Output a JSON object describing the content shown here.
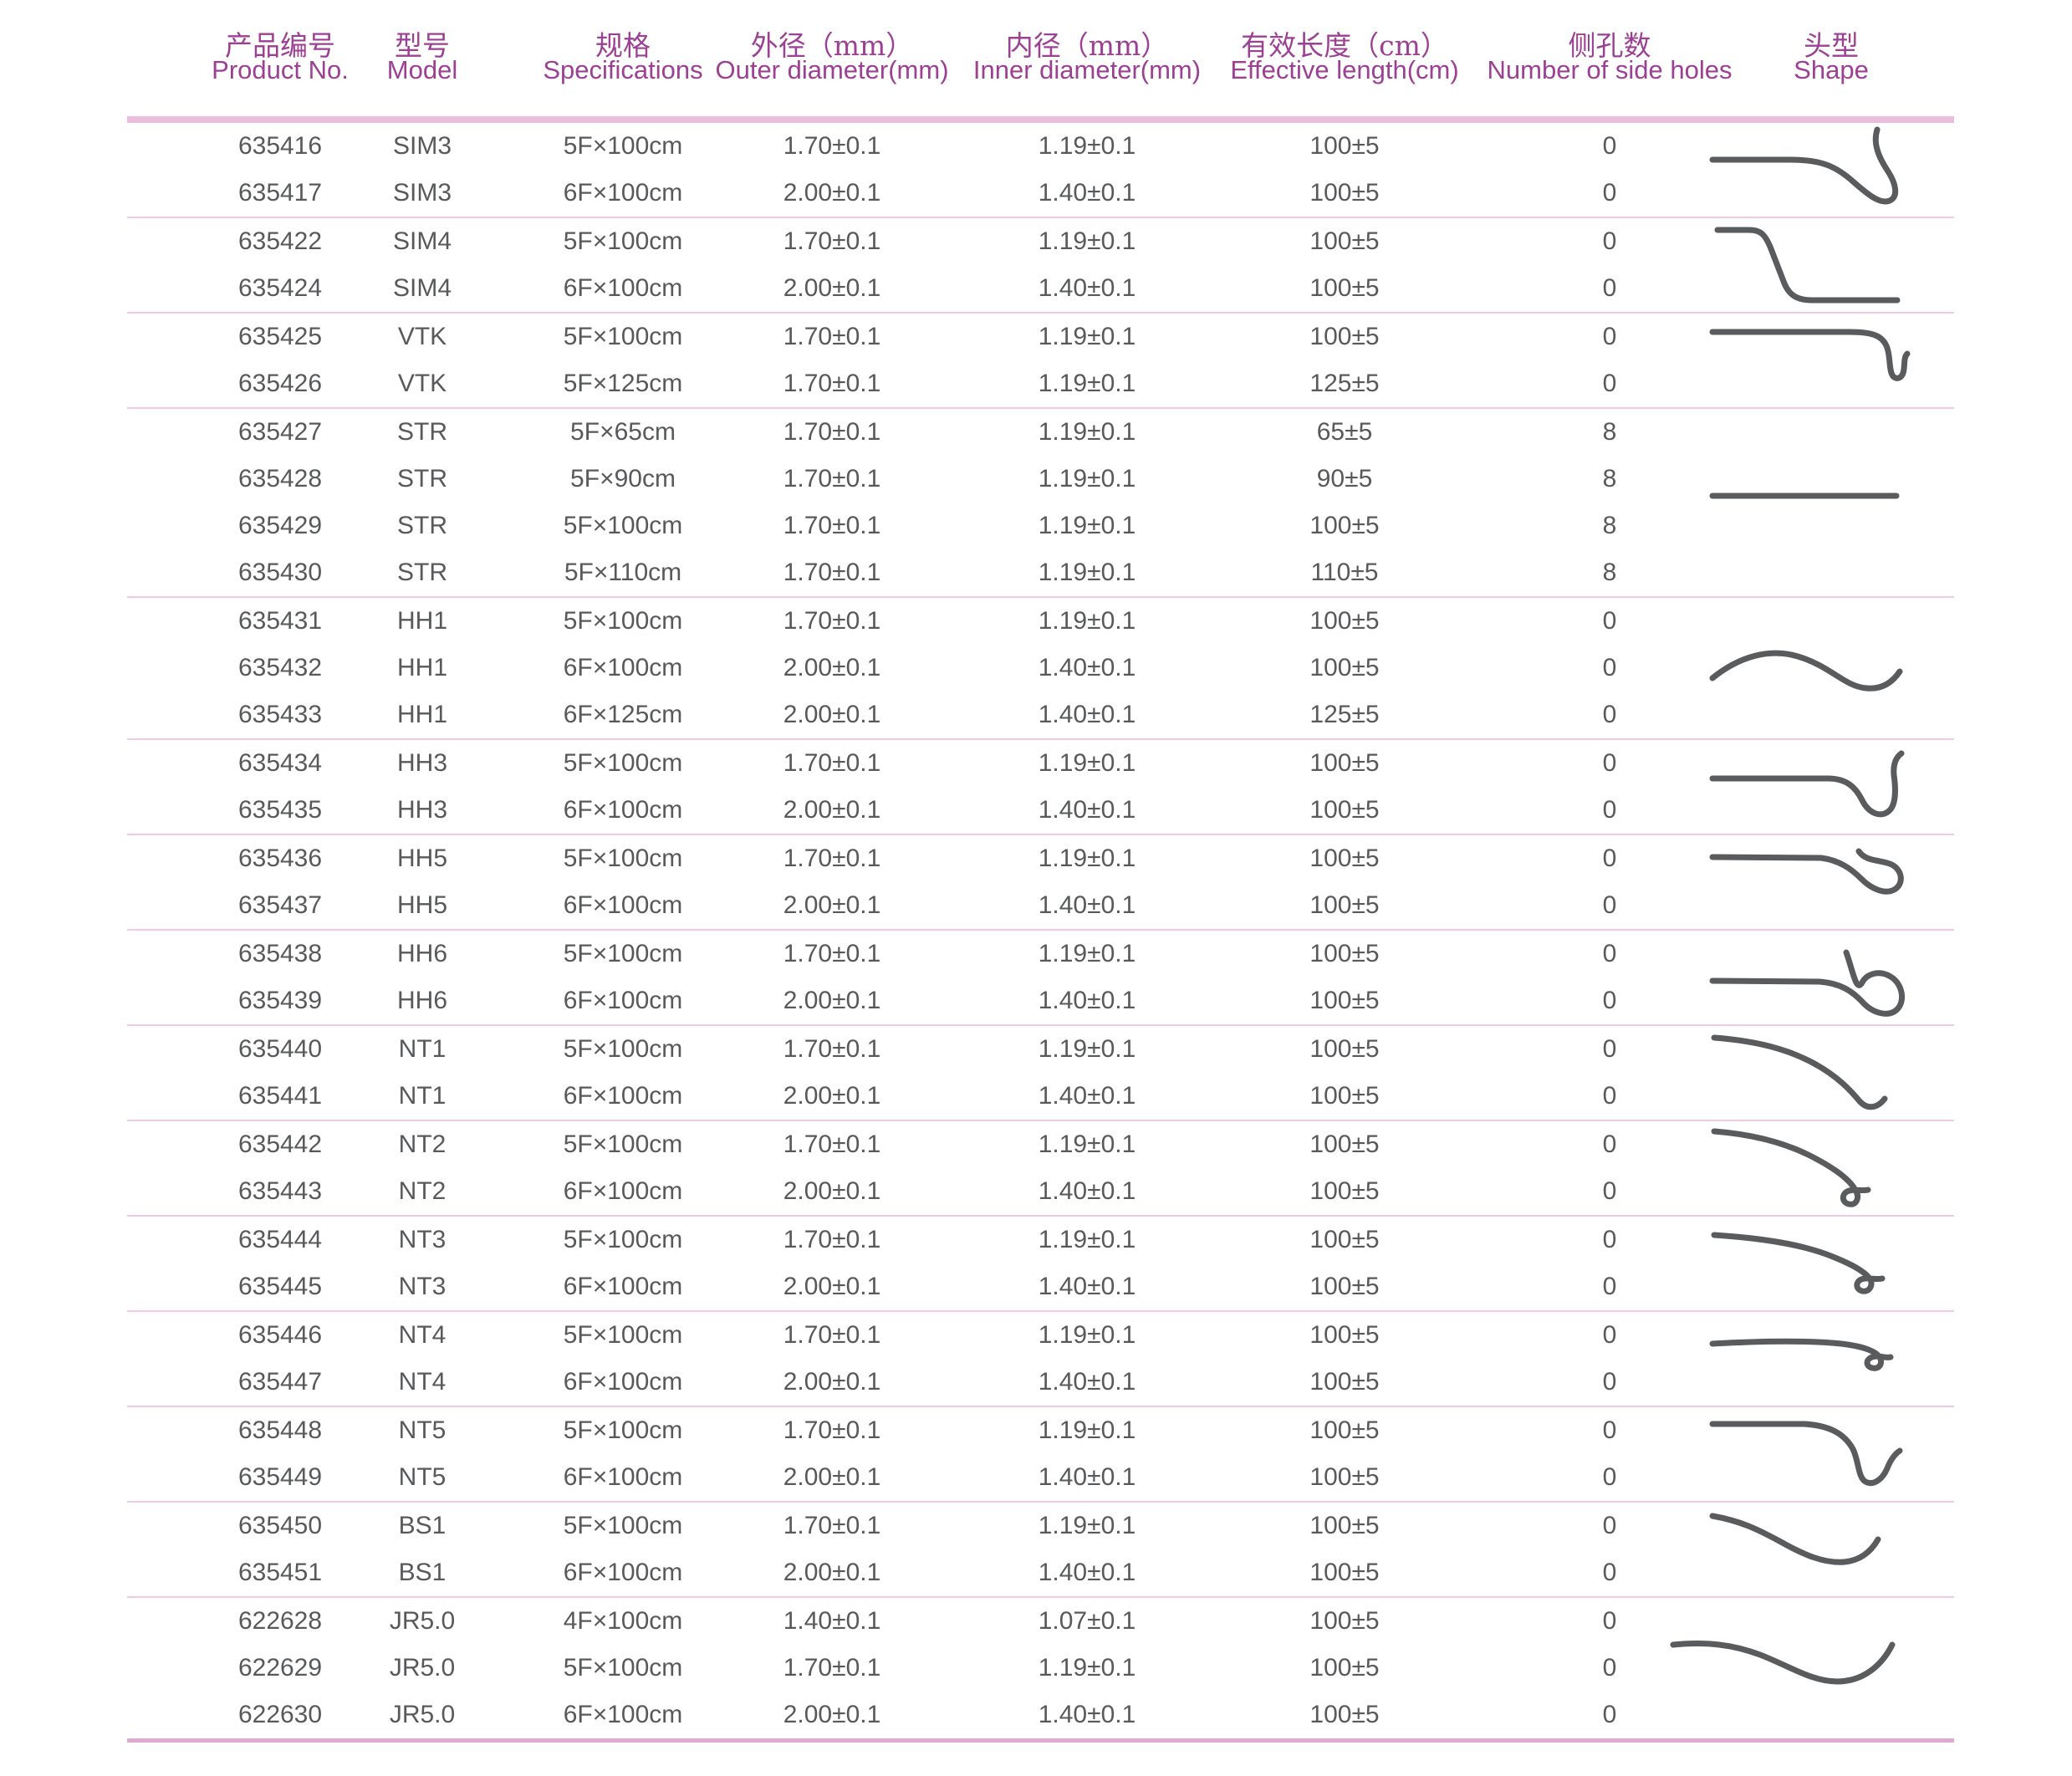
{
  "colors": {
    "header_text": "#9c4094",
    "body_text": "#58595b",
    "header_bar": "#ecbcdd",
    "separator": "#f2cae5",
    "bottom_line": "#dfa9d2",
    "shape_stroke": "#5a5b5d"
  },
  "table": {
    "columns": [
      {
        "zh": "产品编号",
        "en": "Product No."
      },
      {
        "zh": "型号",
        "en": "Model"
      },
      {
        "zh": "规格",
        "en": "Specifications"
      },
      {
        "zh": "外径（mm）",
        "en": "Outer diameter(mm)"
      },
      {
        "zh": "内径（mm）",
        "en": "Inner diameter(mm)"
      },
      {
        "zh": "有效长度（cm）",
        "en": "Effective length(cm)"
      },
      {
        "zh": "侧孔数",
        "en": "Number of side holes"
      },
      {
        "zh": "头型",
        "en": "Shape"
      }
    ],
    "groups": [
      {
        "model": "SIM3",
        "shape_id": "sim3",
        "shape_icon": "sim3-tip-curve-icon",
        "rows": [
          [
            "635416",
            "SIM3",
            "5F×100cm",
            "1.70±0.1",
            "1.19±0.1",
            "100±5",
            "0"
          ],
          [
            "635417",
            "SIM3",
            "6F×100cm",
            "2.00±0.1",
            "1.40±0.1",
            "100±5",
            "0"
          ]
        ]
      },
      {
        "model": "SIM4",
        "shape_id": "sim4",
        "shape_icon": "sim4-tip-curve-icon",
        "rows": [
          [
            "635422",
            "SIM4",
            "5F×100cm",
            "1.70±0.1",
            "1.19±0.1",
            "100±5",
            "0"
          ],
          [
            "635424",
            "SIM4",
            "6F×100cm",
            "2.00±0.1",
            "1.40±0.1",
            "100±5",
            "0"
          ]
        ]
      },
      {
        "model": "VTK",
        "shape_id": "vtk",
        "shape_icon": "vtk-tip-curve-icon",
        "rows": [
          [
            "635425",
            "VTK",
            "5F×100cm",
            "1.70±0.1",
            "1.19±0.1",
            "100±5",
            "0"
          ],
          [
            "635426",
            "VTK",
            "5F×125cm",
            "1.70±0.1",
            "1.19±0.1",
            "125±5",
            "0"
          ]
        ]
      },
      {
        "model": "STR",
        "shape_id": "str",
        "shape_icon": "str-straight-tip-icon",
        "rows": [
          [
            "635427",
            "STR",
            "5F×65cm",
            "1.70±0.1",
            "1.19±0.1",
            "65±5",
            "8"
          ],
          [
            "635428",
            "STR",
            "5F×90cm",
            "1.70±0.1",
            "1.19±0.1",
            "90±5",
            "8"
          ],
          [
            "635429",
            "STR",
            "5F×100cm",
            "1.70±0.1",
            "1.19±0.1",
            "100±5",
            "8"
          ],
          [
            "635430",
            "STR",
            "5F×110cm",
            "1.70±0.1",
            "1.19±0.1",
            "110±5",
            "8"
          ]
        ]
      },
      {
        "model": "HH1",
        "shape_id": "hh1",
        "shape_icon": "hh1-tip-curve-icon",
        "rows": [
          [
            "635431",
            "HH1",
            "5F×100cm",
            "1.70±0.1",
            "1.19±0.1",
            "100±5",
            "0"
          ],
          [
            "635432",
            "HH1",
            "6F×100cm",
            "2.00±0.1",
            "1.40±0.1",
            "100±5",
            "0"
          ],
          [
            "635433",
            "HH1",
            "6F×125cm",
            "2.00±0.1",
            "1.40±0.1",
            "125±5",
            "0"
          ]
        ]
      },
      {
        "model": "HH3",
        "shape_id": "hh3",
        "shape_icon": "hh3-tip-curve-icon",
        "rows": [
          [
            "635434",
            "HH3",
            "5F×100cm",
            "1.70±0.1",
            "1.19±0.1",
            "100±5",
            "0"
          ],
          [
            "635435",
            "HH3",
            "6F×100cm",
            "2.00±0.1",
            "1.40±0.1",
            "100±5",
            "0"
          ]
        ]
      },
      {
        "model": "HH5",
        "shape_id": "hh5",
        "shape_icon": "hh5-tip-loop-icon",
        "rows": [
          [
            "635436",
            "HH5",
            "5F×100cm",
            "1.70±0.1",
            "1.19±0.1",
            "100±5",
            "0"
          ],
          [
            "635437",
            "HH5",
            "6F×100cm",
            "2.00±0.1",
            "1.40±0.1",
            "100±5",
            "0"
          ]
        ]
      },
      {
        "model": "HH6",
        "shape_id": "hh6",
        "shape_icon": "hh6-tip-loop-icon",
        "rows": [
          [
            "635438",
            "HH6",
            "5F×100cm",
            "1.70±0.1",
            "1.19±0.1",
            "100±5",
            "0"
          ],
          [
            "635439",
            "HH6",
            "6F×100cm",
            "2.00±0.1",
            "1.40±0.1",
            "100±5",
            "0"
          ]
        ]
      },
      {
        "model": "NT1",
        "shape_id": "nt1",
        "shape_icon": "nt1-tip-curve-icon",
        "rows": [
          [
            "635440",
            "NT1",
            "5F×100cm",
            "1.70±0.1",
            "1.19±0.1",
            "100±5",
            "0"
          ],
          [
            "635441",
            "NT1",
            "6F×100cm",
            "2.00±0.1",
            "1.40±0.1",
            "100±5",
            "0"
          ]
        ]
      },
      {
        "model": "NT2",
        "shape_id": "nt2",
        "shape_icon": "nt2-tip-curve-icon",
        "rows": [
          [
            "635442",
            "NT2",
            "5F×100cm",
            "1.70±0.1",
            "1.19±0.1",
            "100±5",
            "0"
          ],
          [
            "635443",
            "NT2",
            "6F×100cm",
            "2.00±0.1",
            "1.40±0.1",
            "100±5",
            "0"
          ]
        ]
      },
      {
        "model": "NT3",
        "shape_id": "nt3",
        "shape_icon": "nt3-tip-curve-icon",
        "rows": [
          [
            "635444",
            "NT3",
            "5F×100cm",
            "1.70±0.1",
            "1.19±0.1",
            "100±5",
            "0"
          ],
          [
            "635445",
            "NT3",
            "6F×100cm",
            "2.00±0.1",
            "1.40±0.1",
            "100±5",
            "0"
          ]
        ]
      },
      {
        "model": "NT4",
        "shape_id": "nt4",
        "shape_icon": "nt4-tip-curve-icon",
        "rows": [
          [
            "635446",
            "NT4",
            "5F×100cm",
            "1.70±0.1",
            "1.19±0.1",
            "100±5",
            "0"
          ],
          [
            "635447",
            "NT4",
            "6F×100cm",
            "2.00±0.1",
            "1.40±0.1",
            "100±5",
            "0"
          ]
        ]
      },
      {
        "model": "NT5",
        "shape_id": "nt5",
        "shape_icon": "nt5-tip-hook-icon",
        "rows": [
          [
            "635448",
            "NT5",
            "5F×100cm",
            "1.70±0.1",
            "1.19±0.1",
            "100±5",
            "0"
          ],
          [
            "635449",
            "NT5",
            "6F×100cm",
            "2.00±0.1",
            "1.40±0.1",
            "100±5",
            "0"
          ]
        ]
      },
      {
        "model": "BS1",
        "shape_id": "bs1",
        "shape_icon": "bs1-tip-curve-icon",
        "rows": [
          [
            "635450",
            "BS1",
            "5F×100cm",
            "1.70±0.1",
            "1.19±0.1",
            "100±5",
            "0"
          ],
          [
            "635451",
            "BS1",
            "6F×100cm",
            "2.00±0.1",
            "1.40±0.1",
            "100±5",
            "0"
          ]
        ]
      },
      {
        "model": "JR5.0",
        "shape_id": "jr50",
        "shape_icon": "jr5-tip-curve-icon",
        "rows": [
          [
            "622628",
            "JR5.0",
            "4F×100cm",
            "1.40±0.1",
            "1.07±0.1",
            "100±5",
            "0"
          ],
          [
            "622629",
            "JR5.0",
            "5F×100cm",
            "1.70±0.1",
            "1.19±0.1",
            "100±5",
            "0"
          ],
          [
            "622630",
            "JR5.0",
            "6F×100cm",
            "2.00±0.1",
            "1.40±0.1",
            "100±5",
            "0"
          ]
        ]
      }
    ]
  }
}
